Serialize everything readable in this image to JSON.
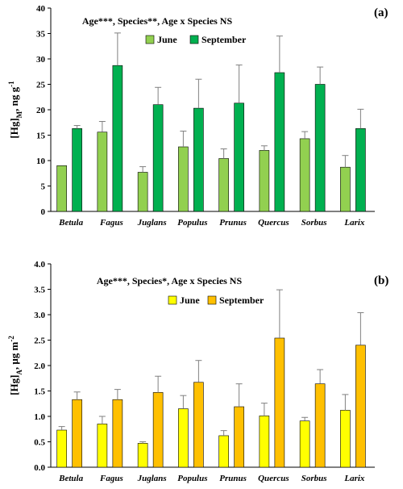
{
  "chart_data": [
    {
      "type": "bar",
      "panel_label": "(a)",
      "annotation": "Age***, Species**, Age x Species NS",
      "ylabel_main": "[Hg]",
      "ylabel_sub": "M",
      "ylabel_unit": ", ng g",
      "ylabel_sup": "-1",
      "ylim": [
        0,
        40
      ],
      "yticks": [
        0,
        5,
        10,
        15,
        20,
        25,
        30,
        35,
        40
      ],
      "tick_decimals": 0,
      "legend_position": "top-center",
      "categories": [
        "Betula",
        "Fagus",
        "Juglans",
        "Populus",
        "Prunus",
        "Quercus",
        "Sorbus",
        "Larix"
      ],
      "series": [
        {
          "name": "June",
          "color": "#92D050",
          "values": [
            9.0,
            15.6,
            7.7,
            12.7,
            10.4,
            12.0,
            14.3,
            8.7
          ],
          "errors": [
            0.0,
            2.1,
            1.1,
            3.1,
            1.9,
            0.9,
            1.4,
            2.3
          ]
        },
        {
          "name": "September",
          "color": "#00B050",
          "values": [
            16.3,
            28.7,
            21.0,
            20.3,
            21.3,
            27.3,
            25.0,
            16.3
          ],
          "errors": [
            0.6,
            6.4,
            3.4,
            5.7,
            7.5,
            7.2,
            3.4,
            3.8
          ]
        }
      ]
    },
    {
      "type": "bar",
      "panel_label": "(b)",
      "annotation": "Age***, Species*, Age x Species NS",
      "ylabel_main": "[Hg]",
      "ylabel_sub": "A",
      "ylabel_unit": ", μg m",
      "ylabel_sup": "-2",
      "ylim": [
        0,
        4.0
      ],
      "yticks": [
        0,
        0.5,
        1.0,
        1.5,
        2.0,
        2.5,
        3.0,
        3.5,
        4.0
      ],
      "tick_decimals": 1,
      "legend_position": "top-center",
      "categories": [
        "Betula",
        "Fagus",
        "Juglans",
        "Populus",
        "Prunus",
        "Quercus",
        "Sorbus",
        "Larix"
      ],
      "series": [
        {
          "name": "June",
          "color": "#FFFF00",
          "values": [
            0.73,
            0.85,
            0.47,
            1.15,
            0.62,
            1.01,
            0.91,
            1.12
          ],
          "errors": [
            0.07,
            0.15,
            0.03,
            0.26,
            0.1,
            0.25,
            0.07,
            0.31
          ]
        },
        {
          "name": "September",
          "color": "#FFC000",
          "values": [
            1.33,
            1.33,
            1.47,
            1.67,
            1.19,
            2.54,
            1.64,
            2.4
          ],
          "errors": [
            0.15,
            0.2,
            0.32,
            0.43,
            0.45,
            0.95,
            0.28,
            0.64
          ]
        }
      ]
    }
  ]
}
